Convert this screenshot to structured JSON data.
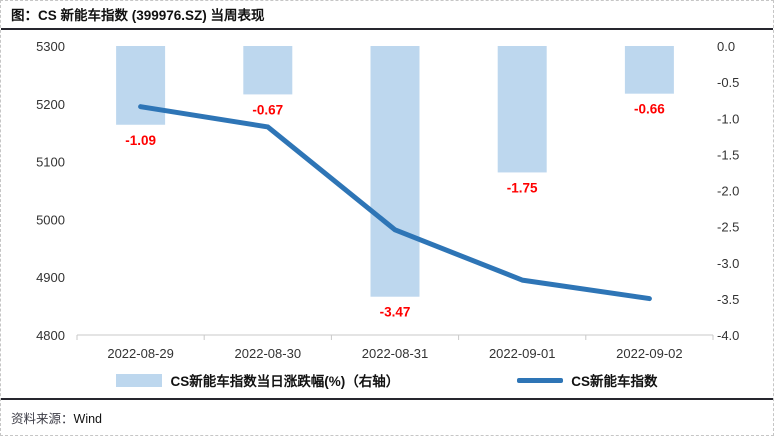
{
  "header": {
    "title": "图：CS 新能车指数 (399976.SZ) 当周表现"
  },
  "footer": {
    "source_label": "资料来源：",
    "source_value": "Wind"
  },
  "chart_data": {
    "type": "bar+line combo",
    "categories": [
      "2022-08-29",
      "2022-08-30",
      "2022-08-31",
      "2022-09-01",
      "2022-09-02"
    ],
    "series": [
      {
        "name": "CS新能车指数当日涨跌幅(%)（右轴）",
        "type": "bar",
        "axis": "right",
        "values": [
          -1.09,
          -0.67,
          -3.47,
          -1.75,
          -0.66
        ],
        "color": "#BDD7EE"
      },
      {
        "name": "CS新能车指数",
        "type": "line",
        "axis": "left",
        "values": [
          5195,
          5160,
          4982,
          4895,
          4863
        ],
        "color": "#2E75B6"
      }
    ],
    "bar_labels": [
      "-1.09",
      "-0.67",
      "-3.47",
      "-1.75",
      "-0.66"
    ],
    "bar_label_color": "#FF0000",
    "left_axis": {
      "min": 4800,
      "max": 5300,
      "ticks": [
        5300,
        5200,
        5100,
        5000,
        4900,
        4800
      ]
    },
    "right_axis": {
      "min": -4.0,
      "max": 0.0,
      "ticks": [
        "0.0",
        "-0.5",
        "-1.0",
        "-1.5",
        "-2.0",
        "-2.5",
        "-3.0",
        "-3.5",
        "-4.0"
      ]
    },
    "axis_line_color": "#C9C9C9",
    "grid": false,
    "legend_position": "bottom"
  }
}
